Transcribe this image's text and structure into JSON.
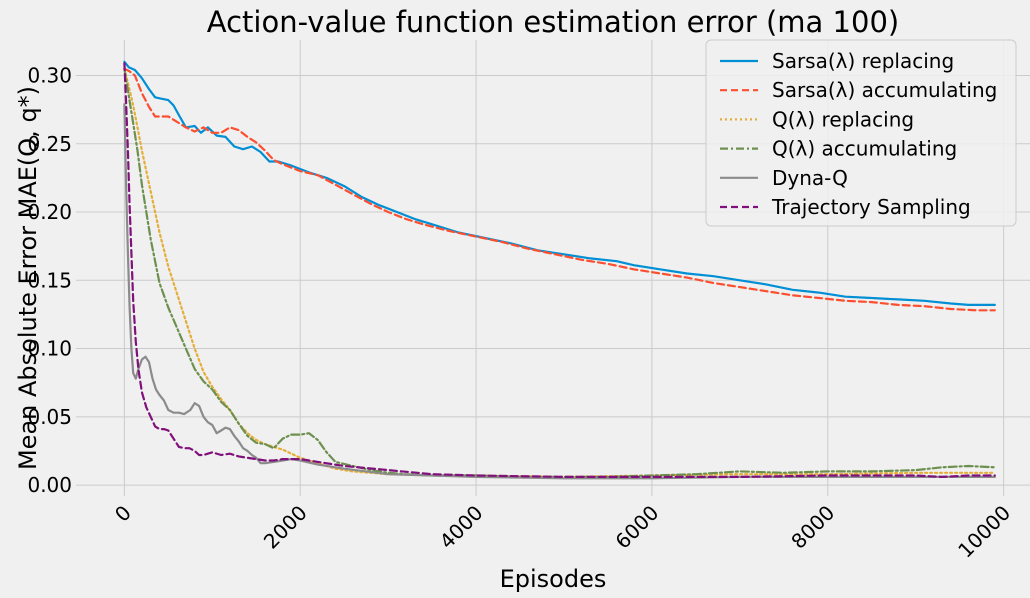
{
  "chart_data": {
    "type": "line",
    "title": "Action-value function estimation error (ma 100)",
    "xlabel": "Episodes",
    "ylabel": "Mean Absolute Error MAE(Q, q*)",
    "xlim": [
      -550,
      10300
    ],
    "ylim": [
      -0.008,
      0.326
    ],
    "xticks": [
      0,
      2000,
      4000,
      6000,
      8000,
      10000
    ],
    "xtick_labels": [
      "0",
      "2000",
      "4000",
      "6000",
      "8000",
      "10000"
    ],
    "yticks": [
      0.0,
      0.05,
      0.1,
      0.15,
      0.2,
      0.25,
      0.3
    ],
    "ytick_labels": [
      "0.00",
      "0.05",
      "0.10",
      "0.15",
      "0.20",
      "0.25",
      "0.30"
    ],
    "grid": true,
    "legend_position": "top-right",
    "series": [
      {
        "name": "Sarsa(λ) replacing",
        "color": "#008fd5",
        "dash": "solid",
        "x": [
          0,
          50,
          120,
          200,
          280,
          350,
          420,
          500,
          560,
          620,
          700,
          800,
          870,
          950,
          1050,
          1150,
          1250,
          1350,
          1450,
          1550,
          1650,
          1750,
          1900,
          2100,
          2300,
          2500,
          2700,
          2900,
          3100,
          3300,
          3500,
          3800,
          4100,
          4400,
          4700,
          5000,
          5300,
          5600,
          5800,
          6100,
          6400,
          6700,
          7000,
          7300,
          7600,
          7900,
          8200,
          8500,
          8800,
          9100,
          9400,
          9600,
          9900
        ],
        "y": [
          0.31,
          0.306,
          0.304,
          0.298,
          0.29,
          0.284,
          0.283,
          0.282,
          0.278,
          0.271,
          0.262,
          0.263,
          0.258,
          0.262,
          0.256,
          0.255,
          0.248,
          0.246,
          0.248,
          0.244,
          0.237,
          0.237,
          0.234,
          0.229,
          0.225,
          0.219,
          0.211,
          0.205,
          0.2,
          0.195,
          0.191,
          0.185,
          0.181,
          0.177,
          0.172,
          0.169,
          0.166,
          0.164,
          0.161,
          0.158,
          0.155,
          0.153,
          0.15,
          0.147,
          0.143,
          0.141,
          0.138,
          0.137,
          0.136,
          0.135,
          0.133,
          0.132,
          0.132
        ]
      },
      {
        "name": "Sarsa(λ) accumulating",
        "color": "#fc4f30",
        "dash": "dashed",
        "x": [
          0,
          60,
          120,
          200,
          280,
          350,
          420,
          500,
          600,
          700,
          800,
          900,
          1000,
          1100,
          1200,
          1300,
          1400,
          1500,
          1600,
          1700,
          1800,
          2000,
          2200,
          2400,
          2600,
          2800,
          3000,
          3200,
          3400,
          3700,
          4000,
          4300,
          4600,
          4900,
          5200,
          5500,
          5800,
          6100,
          6400,
          6700,
          7000,
          7300,
          7600,
          7900,
          8200,
          8500,
          8800,
          9100,
          9400,
          9700,
          9900
        ],
        "y": [
          0.305,
          0.303,
          0.3,
          0.287,
          0.277,
          0.27,
          0.27,
          0.27,
          0.266,
          0.262,
          0.259,
          0.262,
          0.258,
          0.258,
          0.262,
          0.26,
          0.255,
          0.251,
          0.245,
          0.238,
          0.235,
          0.23,
          0.227,
          0.22,
          0.213,
          0.206,
          0.2,
          0.195,
          0.191,
          0.186,
          0.182,
          0.178,
          0.173,
          0.169,
          0.165,
          0.162,
          0.158,
          0.155,
          0.152,
          0.148,
          0.145,
          0.142,
          0.139,
          0.137,
          0.135,
          0.134,
          0.132,
          0.131,
          0.129,
          0.128,
          0.128
        ]
      },
      {
        "name": "Q(λ) replacing",
        "color": "#e5ae38",
        "dash": "dotted",
        "x": [
          0,
          50,
          100,
          150,
          200,
          300,
          400,
          500,
          600,
          700,
          800,
          900,
          1000,
          1100,
          1200,
          1300,
          1400,
          1500,
          1600,
          1700,
          1800,
          1900,
          2000,
          2200,
          2400,
          2600,
          3000,
          3500,
          4000,
          5000,
          6000,
          7000,
          8000,
          9000,
          9900
        ],
        "y": [
          0.305,
          0.292,
          0.278,
          0.262,
          0.245,
          0.215,
          0.185,
          0.16,
          0.14,
          0.12,
          0.1,
          0.083,
          0.072,
          0.063,
          0.055,
          0.045,
          0.038,
          0.033,
          0.03,
          0.028,
          0.026,
          0.023,
          0.02,
          0.016,
          0.012,
          0.01,
          0.008,
          0.007,
          0.007,
          0.006,
          0.007,
          0.008,
          0.008,
          0.009,
          0.009
        ]
      },
      {
        "name": "Q(λ) accumulating",
        "color": "#6d904f",
        "dash": "dashdot",
        "x": [
          0,
          50,
          100,
          150,
          200,
          300,
          400,
          500,
          600,
          700,
          800,
          900,
          1000,
          1100,
          1200,
          1300,
          1400,
          1500,
          1600,
          1700,
          1800,
          1900,
          2000,
          2100,
          2200,
          2300,
          2400,
          2600,
          2800,
          3000,
          3200,
          3500,
          4000,
          4500,
          5000,
          5500,
          6000,
          6500,
          7000,
          7500,
          8000,
          8500,
          9000,
          9300,
          9600,
          9900
        ],
        "y": [
          0.305,
          0.285,
          0.265,
          0.245,
          0.22,
          0.18,
          0.148,
          0.13,
          0.115,
          0.1,
          0.085,
          0.076,
          0.07,
          0.061,
          0.055,
          0.045,
          0.036,
          0.031,
          0.03,
          0.027,
          0.034,
          0.037,
          0.037,
          0.038,
          0.033,
          0.024,
          0.017,
          0.014,
          0.011,
          0.009,
          0.008,
          0.007,
          0.007,
          0.006,
          0.006,
          0.006,
          0.007,
          0.008,
          0.01,
          0.009,
          0.01,
          0.01,
          0.011,
          0.013,
          0.014,
          0.013
        ]
      },
      {
        "name": "Dyna-Q",
        "color": "#8b8b8b",
        "dash": "solid",
        "x": [
          0,
          20,
          40,
          60,
          80,
          100,
          130,
          160,
          200,
          240,
          280,
          320,
          360,
          400,
          450,
          500,
          560,
          620,
          680,
          750,
          800,
          850,
          900,
          950,
          1000,
          1050,
          1100,
          1150,
          1200,
          1250,
          1300,
          1350,
          1400,
          1450,
          1500,
          1550,
          1600,
          1700,
          1800,
          1900,
          2000,
          2200,
          2500,
          3000,
          3500,
          4000,
          5000,
          6000,
          7000,
          8000,
          9000,
          9900
        ],
        "y": [
          0.279,
          0.22,
          0.17,
          0.13,
          0.1,
          0.082,
          0.078,
          0.085,
          0.092,
          0.094,
          0.09,
          0.078,
          0.07,
          0.066,
          0.062,
          0.055,
          0.053,
          0.053,
          0.052,
          0.055,
          0.06,
          0.058,
          0.05,
          0.046,
          0.044,
          0.038,
          0.04,
          0.042,
          0.041,
          0.036,
          0.032,
          0.027,
          0.025,
          0.022,
          0.02,
          0.016,
          0.016,
          0.017,
          0.018,
          0.019,
          0.018,
          0.015,
          0.012,
          0.008,
          0.007,
          0.006,
          0.005,
          0.005,
          0.006,
          0.006,
          0.006,
          0.006
        ]
      },
      {
        "name": "Trajectory Sampling",
        "color": "#810f7c",
        "dash": "dashed",
        "x": [
          0,
          20,
          40,
          60,
          80,
          100,
          130,
          160,
          200,
          250,
          300,
          350,
          400,
          450,
          500,
          560,
          620,
          680,
          740,
          800,
          850,
          900,
          1000,
          1100,
          1200,
          1300,
          1400,
          1500,
          1600,
          1700,
          1800,
          1900,
          2000,
          2200,
          2500,
          3000,
          3500,
          4000,
          5000,
          6000,
          7000,
          8000,
          9000,
          9300,
          9600,
          9900
        ],
        "y": [
          0.309,
          0.28,
          0.245,
          0.205,
          0.17,
          0.135,
          0.105,
          0.085,
          0.068,
          0.057,
          0.05,
          0.043,
          0.041,
          0.041,
          0.04,
          0.034,
          0.028,
          0.027,
          0.027,
          0.025,
          0.022,
          0.022,
          0.024,
          0.022,
          0.023,
          0.021,
          0.02,
          0.019,
          0.018,
          0.018,
          0.019,
          0.019,
          0.019,
          0.017,
          0.014,
          0.011,
          0.008,
          0.007,
          0.006,
          0.006,
          0.006,
          0.007,
          0.007,
          0.006,
          0.007,
          0.007
        ]
      }
    ]
  }
}
